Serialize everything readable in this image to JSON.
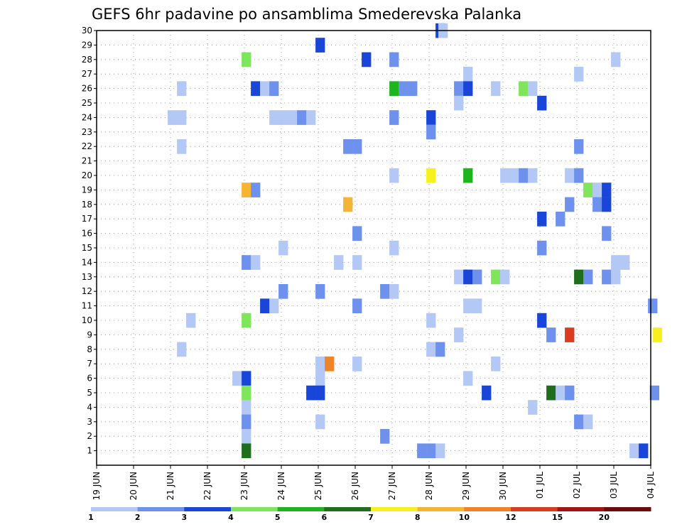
{
  "chart_data": {
    "type": "heatmap",
    "title": "GEFS 6hr padavine po ansamblima Smederevska Palanka",
    "y_members": [
      1,
      2,
      3,
      4,
      5,
      6,
      7,
      8,
      9,
      10,
      11,
      12,
      13,
      14,
      15,
      16,
      17,
      18,
      19,
      20,
      21,
      22,
      23,
      24,
      25,
      26,
      27,
      28,
      29,
      30
    ],
    "x_dates": [
      "19 JUN",
      "20 JUN",
      "21 JUN",
      "22 JUN",
      "23 JUN",
      "24 JUN",
      "25 JUN",
      "26 JUN",
      "27 JUN",
      "28 JUN",
      "29 JUN",
      "30 JUN",
      "01 JUL",
      "02 JUL",
      "03 JUL",
      "04 JUL"
    ],
    "time_step_hours": 6,
    "legend": {
      "position": "bottom",
      "colors": [
        "#b4c8f5",
        "#6e91ee",
        "#1946d9",
        "#7fe65c",
        "#1eb41e",
        "#1e6e1e",
        "#f5f01e",
        "#f5b432",
        "#f08228",
        "#dc3c1e",
        "#a01414",
        "#6e0a0a"
      ],
      "labels": [
        "1",
        "2",
        "3",
        "4",
        "5",
        "6",
        "7",
        "8",
        "10",
        "12",
        "15",
        "20"
      ]
    },
    "cells": [
      {
        "m": 30,
        "t": 36.7,
        "c": 3
      },
      {
        "m": 30,
        "t": 37.0,
        "c": 1
      },
      {
        "m": 29,
        "t": 23.7,
        "c": 3
      },
      {
        "m": 28,
        "t": 15.7,
        "c": 4
      },
      {
        "m": 28,
        "t": 28.7,
        "c": 3
      },
      {
        "m": 28,
        "t": 31.7,
        "c": 2
      },
      {
        "m": 28,
        "t": 55.7,
        "c": 1
      },
      {
        "m": 27,
        "t": 39.7,
        "c": 1
      },
      {
        "m": 27,
        "t": 51.7,
        "c": 1
      },
      {
        "m": 26,
        "t": 8.7,
        "c": 1
      },
      {
        "m": 26,
        "t": 16.7,
        "c": 3
      },
      {
        "m": 26,
        "t": 17.7,
        "c": 1
      },
      {
        "m": 26,
        "t": 18.7,
        "c": 2
      },
      {
        "m": 26,
        "t": 31.7,
        "c": 5
      },
      {
        "m": 26,
        "t": 32.7,
        "c": 2
      },
      {
        "m": 26,
        "t": 33.7,
        "c": 2
      },
      {
        "m": 26,
        "t": 38.7,
        "c": 2
      },
      {
        "m": 26,
        "t": 39.7,
        "c": 3
      },
      {
        "m": 26,
        "t": 42.7,
        "c": 1
      },
      {
        "m": 26,
        "t": 45.7,
        "c": 4
      },
      {
        "m": 26,
        "t": 46.7,
        "c": 1
      },
      {
        "m": 25,
        "t": 38.7,
        "c": 1
      },
      {
        "m": 25,
        "t": 47.7,
        "c": 3
      },
      {
        "m": 24,
        "t": 7.7,
        "c": 1
      },
      {
        "m": 24,
        "t": 8.7,
        "c": 1
      },
      {
        "m": 24,
        "t": 18.7,
        "c": 1
      },
      {
        "m": 24,
        "t": 19.7,
        "c": 1
      },
      {
        "m": 24,
        "t": 20.7,
        "c": 1
      },
      {
        "m": 24,
        "t": 21.7,
        "c": 2
      },
      {
        "m": 24,
        "t": 22.7,
        "c": 1
      },
      {
        "m": 24,
        "t": 31.7,
        "c": 2
      },
      {
        "m": 24,
        "t": 35.7,
        "c": 3
      },
      {
        "m": 23,
        "t": 35.7,
        "c": 2
      },
      {
        "m": 22,
        "t": 8.7,
        "c": 1
      },
      {
        "m": 22,
        "t": 26.7,
        "c": 2
      },
      {
        "m": 22,
        "t": 27.7,
        "c": 2
      },
      {
        "m": 22,
        "t": 51.7,
        "c": 2
      },
      {
        "m": 20,
        "t": 31.7,
        "c": 1
      },
      {
        "m": 20,
        "t": 35.7,
        "c": 7
      },
      {
        "m": 20,
        "t": 39.7,
        "c": 5
      },
      {
        "m": 20,
        "t": 43.7,
        "c": 1
      },
      {
        "m": 20,
        "t": 44.7,
        "c": 1
      },
      {
        "m": 20,
        "t": 45.7,
        "c": 2
      },
      {
        "m": 20,
        "t": 46.7,
        "c": 1
      },
      {
        "m": 20,
        "t": 50.7,
        "c": 1
      },
      {
        "m": 20,
        "t": 51.7,
        "c": 2
      },
      {
        "m": 19,
        "t": 15.7,
        "c": 8
      },
      {
        "m": 19,
        "t": 16.7,
        "c": 2
      },
      {
        "m": 19,
        "t": 52.7,
        "c": 4
      },
      {
        "m": 19,
        "t": 53.7,
        "c": 1
      },
      {
        "m": 19,
        "t": 54.7,
        "c": 3
      },
      {
        "m": 18,
        "t": 26.7,
        "c": 8
      },
      {
        "m": 18,
        "t": 50.7,
        "c": 2
      },
      {
        "m": 18,
        "t": 53.7,
        "c": 2
      },
      {
        "m": 18,
        "t": 54.7,
        "c": 3
      },
      {
        "m": 17,
        "t": 49.7,
        "c": 2
      },
      {
        "m": 17,
        "t": 47.7,
        "c": 3
      },
      {
        "m": 16,
        "t": 27.7,
        "c": 2
      },
      {
        "m": 16,
        "t": 54.7,
        "c": 2
      },
      {
        "m": 15,
        "t": 19.7,
        "c": 1
      },
      {
        "m": 15,
        "t": 31.7,
        "c": 1
      },
      {
        "m": 15,
        "t": 47.7,
        "c": 2
      },
      {
        "m": 14,
        "t": 15.7,
        "c": 2
      },
      {
        "m": 14,
        "t": 16.7,
        "c": 1
      },
      {
        "m": 14,
        "t": 25.7,
        "c": 1
      },
      {
        "m": 14,
        "t": 27.7,
        "c": 1
      },
      {
        "m": 14,
        "t": 55.7,
        "c": 1
      },
      {
        "m": 14,
        "t": 56.7,
        "c": 1
      },
      {
        "m": 13,
        "t": 38.7,
        "c": 1
      },
      {
        "m": 13,
        "t": 39.7,
        "c": 3
      },
      {
        "m": 13,
        "t": 40.7,
        "c": 2
      },
      {
        "m": 13,
        "t": 42.7,
        "c": 4
      },
      {
        "m": 13,
        "t": 43.7,
        "c": 1
      },
      {
        "m": 13,
        "t": 51.7,
        "c": 6
      },
      {
        "m": 13,
        "t": 52.7,
        "c": 2
      },
      {
        "m": 13,
        "t": 54.7,
        "c": 2
      },
      {
        "m": 13,
        "t": 55.7,
        "c": 1
      },
      {
        "m": 12,
        "t": 19.7,
        "c": 2
      },
      {
        "m": 12,
        "t": 23.7,
        "c": 2
      },
      {
        "m": 12,
        "t": 30.7,
        "c": 2
      },
      {
        "m": 12,
        "t": 31.7,
        "c": 1
      },
      {
        "m": 11,
        "t": 17.7,
        "c": 3
      },
      {
        "m": 11,
        "t": 18.7,
        "c": 1
      },
      {
        "m": 11,
        "t": 27.7,
        "c": 2
      },
      {
        "m": 11,
        "t": 39.7,
        "c": 1
      },
      {
        "m": 11,
        "t": 40.7,
        "c": 1
      },
      {
        "m": 11,
        "t": 59.7,
        "c": 2
      },
      {
        "m": 10,
        "t": 9.7,
        "c": 1
      },
      {
        "m": 10,
        "t": 15.7,
        "c": 4
      },
      {
        "m": 10,
        "t": 35.7,
        "c": 1
      },
      {
        "m": 10,
        "t": 47.7,
        "c": 3
      },
      {
        "m": 9,
        "t": 38.7,
        "c": 1
      },
      {
        "m": 9,
        "t": 48.7,
        "c": 2
      },
      {
        "m": 9,
        "t": 50.7,
        "c": 10
      },
      {
        "m": 9,
        "t": 60.2,
        "c": 7
      },
      {
        "m": 8,
        "t": 8.7,
        "c": 1
      },
      {
        "m": 8,
        "t": 35.7,
        "c": 1
      },
      {
        "m": 8,
        "t": 36.7,
        "c": 2
      },
      {
        "m": 7,
        "t": 23.7,
        "c": 1
      },
      {
        "m": 7,
        "t": 24.7,
        "c": 9
      },
      {
        "m": 7,
        "t": 27.7,
        "c": 1
      },
      {
        "m": 7,
        "t": 42.7,
        "c": 1
      },
      {
        "m": 6,
        "t": 14.7,
        "c": 1
      },
      {
        "m": 6,
        "t": 15.7,
        "c": 3
      },
      {
        "m": 6,
        "t": 23.7,
        "c": 1
      },
      {
        "m": 6,
        "t": 39.7,
        "c": 1
      },
      {
        "m": 5,
        "t": 15.7,
        "c": 4
      },
      {
        "m": 5,
        "t": 22.7,
        "c": 3
      },
      {
        "m": 5,
        "t": 23.7,
        "c": 3
      },
      {
        "m": 5,
        "t": 41.7,
        "c": 3
      },
      {
        "m": 5,
        "t": 48.7,
        "c": 6
      },
      {
        "m": 5,
        "t": 49.7,
        "c": 1
      },
      {
        "m": 5,
        "t": 50.7,
        "c": 2
      },
      {
        "m": 5,
        "t": 59.9,
        "c": 2
      },
      {
        "m": 4,
        "t": 15.7,
        "c": 1
      },
      {
        "m": 4,
        "t": 46.7,
        "c": 1
      },
      {
        "m": 3,
        "t": 15.7,
        "c": 2
      },
      {
        "m": 3,
        "t": 23.7,
        "c": 1
      },
      {
        "m": 3,
        "t": 51.7,
        "c": 2
      },
      {
        "m": 3,
        "t": 52.7,
        "c": 1
      },
      {
        "m": 2,
        "t": 15.7,
        "c": 1
      },
      {
        "m": 2,
        "t": 30.7,
        "c": 2
      },
      {
        "m": 1,
        "t": 15.7,
        "c": 6
      },
      {
        "m": 1,
        "t": 34.7,
        "c": 2
      },
      {
        "m": 1,
        "t": 35.7,
        "c": 2
      },
      {
        "m": 1,
        "t": 36.7,
        "c": 1
      },
      {
        "m": 1,
        "t": 57.7,
        "c": 1
      },
      {
        "m": 1,
        "t": 58.7,
        "c": 3
      }
    ]
  }
}
